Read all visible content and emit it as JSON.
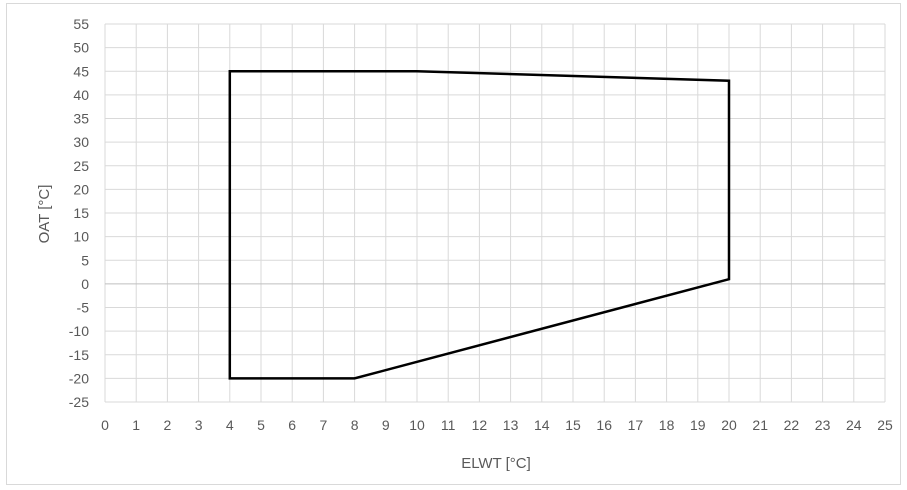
{
  "chart_data": {
    "type": "line",
    "title": "",
    "xlabel": "ELWT [°C]",
    "ylabel": "OAT [°C]",
    "xlim": [
      0,
      25
    ],
    "ylim": [
      -25,
      55
    ],
    "x_ticks": [
      0,
      1,
      2,
      3,
      4,
      5,
      6,
      7,
      8,
      9,
      10,
      11,
      12,
      13,
      14,
      15,
      16,
      17,
      18,
      19,
      20,
      21,
      22,
      23,
      24,
      25
    ],
    "y_ticks": [
      -25,
      -20,
      -15,
      -10,
      -5,
      0,
      5,
      10,
      15,
      20,
      25,
      30,
      35,
      40,
      45,
      50,
      55
    ],
    "grid": true,
    "legend": "none",
    "series": [
      {
        "color": "#000000",
        "closed": true,
        "points": [
          {
            "x": 4,
            "y": 45
          },
          {
            "x": 10,
            "y": 45
          },
          {
            "x": 20,
            "y": 43
          },
          {
            "x": 20,
            "y": 1
          },
          {
            "x": 8,
            "y": -20
          },
          {
            "x": 4,
            "y": -20
          }
        ]
      }
    ]
  }
}
